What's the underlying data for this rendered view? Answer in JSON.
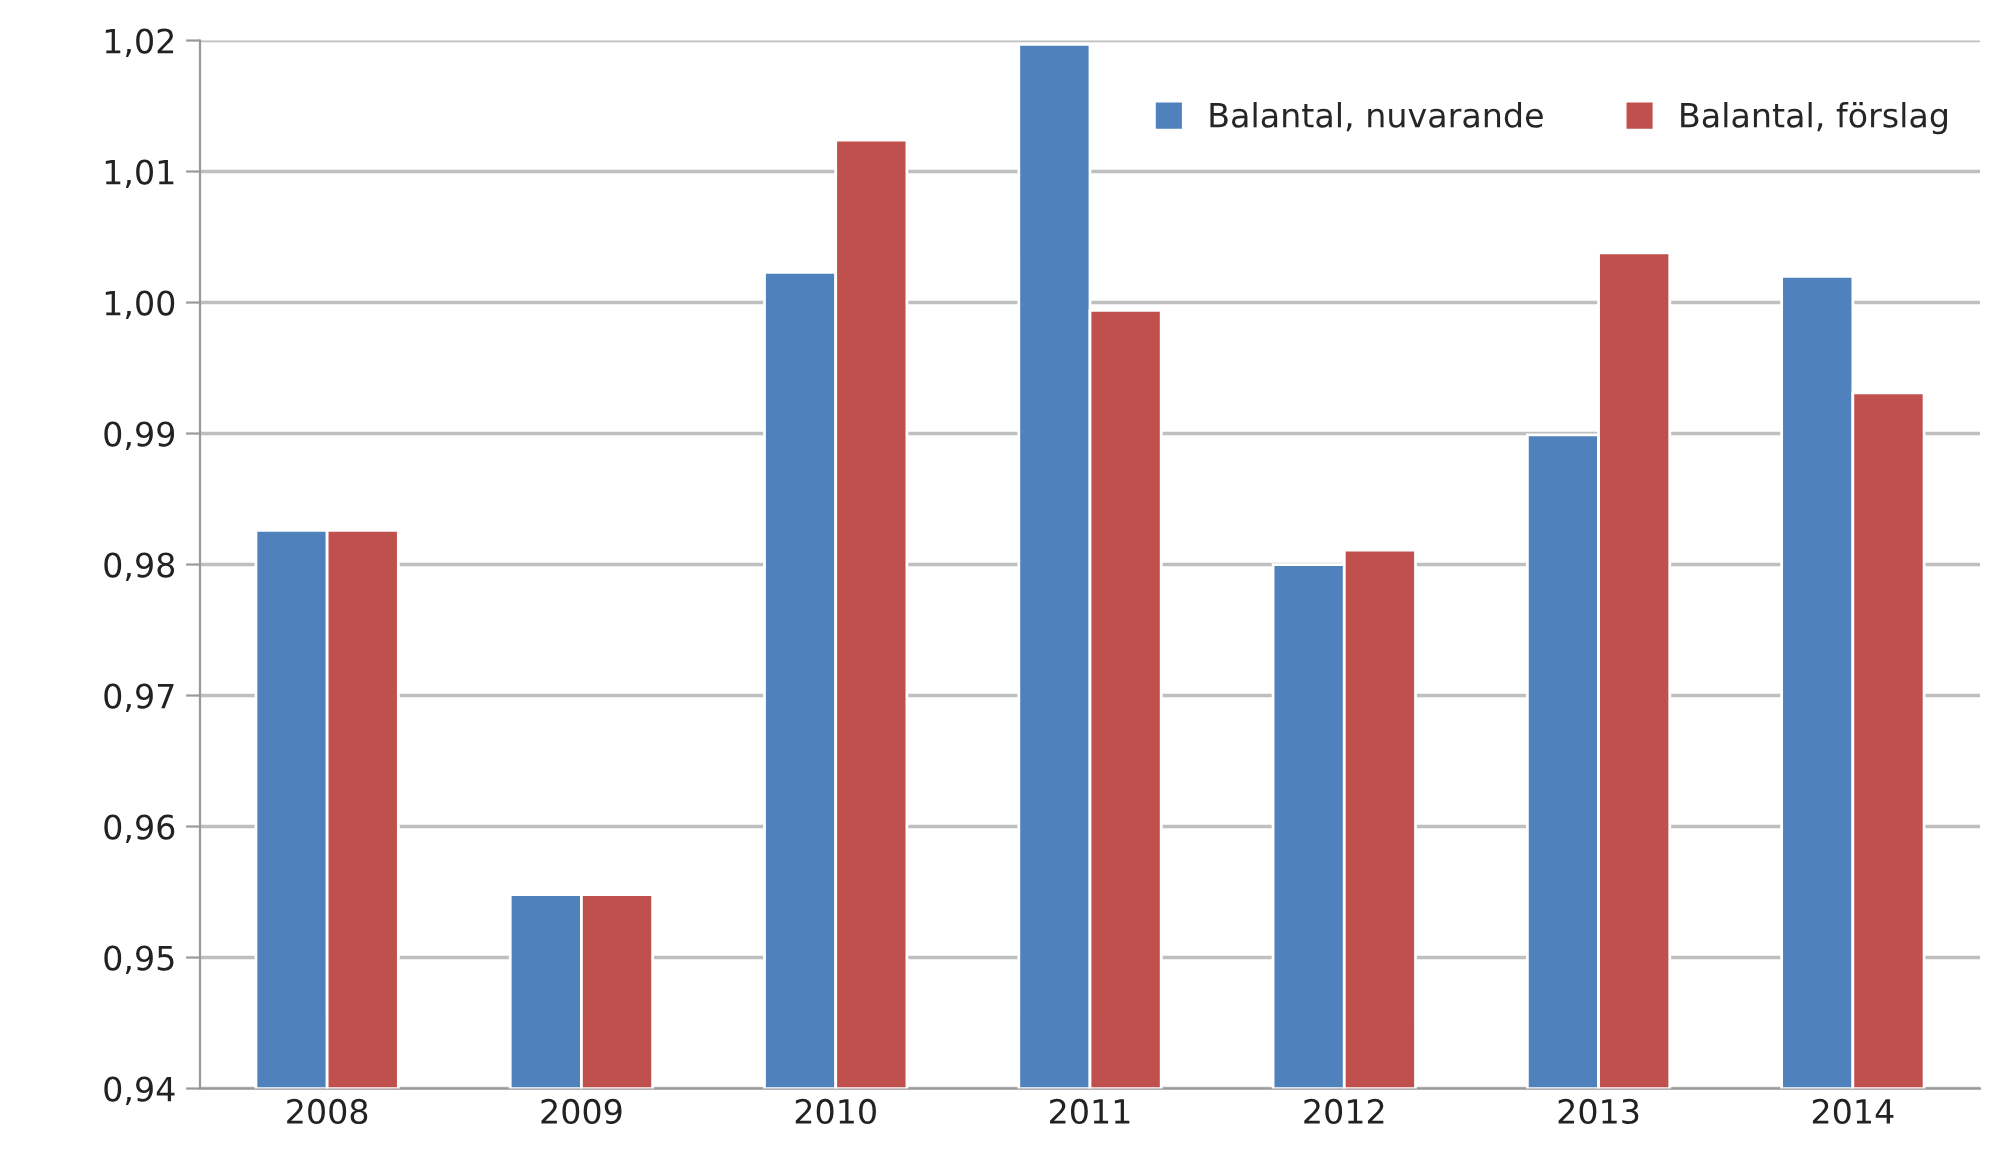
{
  "chart_data": {
    "type": "bar",
    "categories": [
      "2008",
      "2009",
      "2010",
      "2011",
      "2012",
      "2013",
      "2014"
    ],
    "series": [
      {
        "name": "Balantal, nuvarande",
        "color": "#4f81bd",
        "values": [
          0.9826,
          0.9548,
          1.0023,
          1.0197,
          0.98,
          0.9899,
          1.002
        ]
      },
      {
        "name": "Balantal, förslag",
        "color": "#c0504d",
        "values": [
          0.9826,
          0.9548,
          1.0124,
          0.9994,
          0.9811,
          1.0038,
          0.9931
        ]
      }
    ],
    "ylim": [
      0.94,
      1.02
    ],
    "yticks": [
      {
        "value": 0.94,
        "label": "0,94"
      },
      {
        "value": 0.95,
        "label": "0,95"
      },
      {
        "value": 0.96,
        "label": "0,96"
      },
      {
        "value": 0.97,
        "label": "0,97"
      },
      {
        "value": 0.98,
        "label": "0,98"
      },
      {
        "value": 0.99,
        "label": "0,99"
      },
      {
        "value": 1.0,
        "label": "1,00"
      },
      {
        "value": 1.01,
        "label": "1,01"
      },
      {
        "value": 1.02,
        "label": "1,02"
      }
    ],
    "grid": "y",
    "legend": "top right"
  }
}
